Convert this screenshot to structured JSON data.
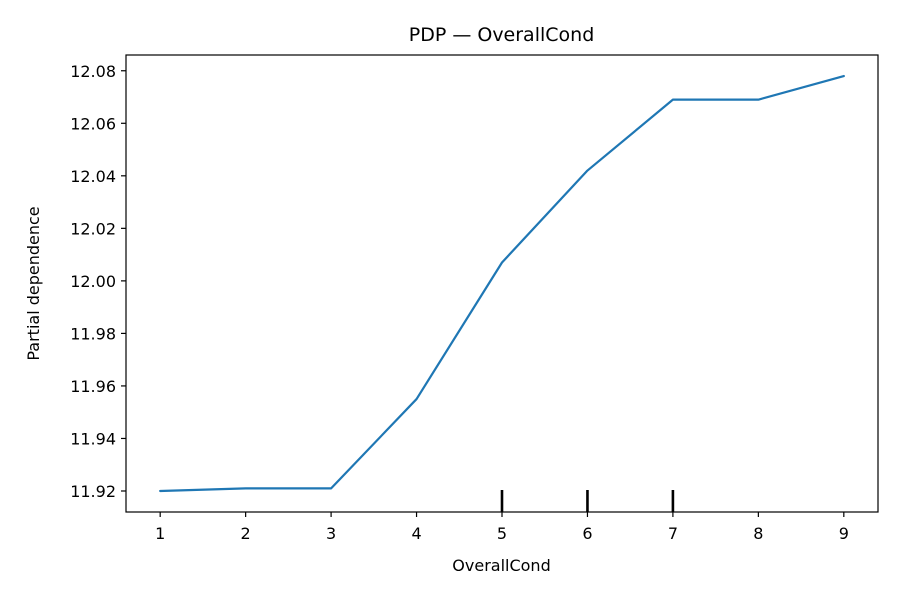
{
  "chart_data": {
    "type": "line",
    "title": "PDP — OverallCond",
    "xlabel": "OverallCond",
    "ylabel": "Partial dependence",
    "x": [
      1,
      2,
      3,
      4,
      5,
      6,
      7,
      8,
      9
    ],
    "series": [
      {
        "values": [
          11.92,
          11.921,
          11.921,
          11.955,
          12.007,
          12.042,
          12.069,
          12.069,
          12.078
        ],
        "color": "#1f77b4"
      }
    ],
    "xticks": [
      "1",
      "2",
      "3",
      "4",
      "5",
      "6",
      "7",
      "8",
      "9"
    ],
    "yticks": [
      "11.92",
      "11.94",
      "11.96",
      "11.98",
      "12.00",
      "12.02",
      "12.04",
      "12.06",
      "12.08"
    ],
    "xlim": [
      0.6,
      9.4
    ],
    "ylim": [
      11.912,
      12.086
    ],
    "rug_x": [
      5,
      6,
      7
    ],
    "grid": false,
    "legend": "none"
  }
}
